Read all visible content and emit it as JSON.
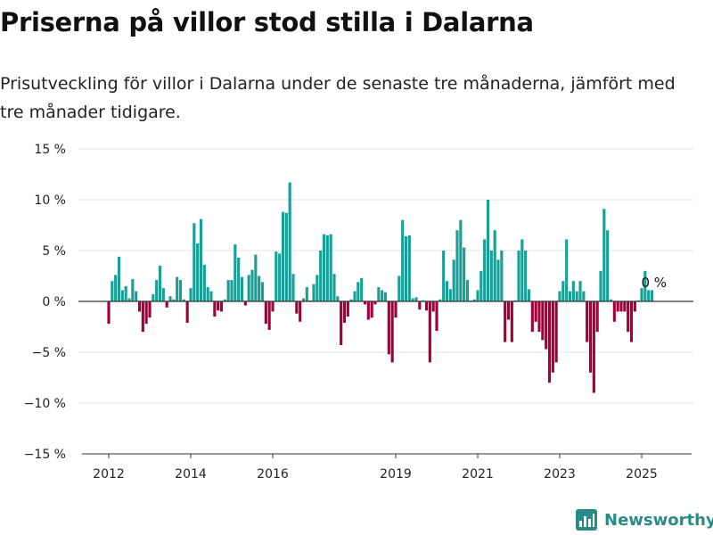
{
  "header": {
    "title": "Priserna på villor stod stilla i Dalarna",
    "subtitle": "Prisutveckling för villor i Dalarna under de senaste tre månaderna, jämfört med tre månader tidigare."
  },
  "brand": {
    "name": "Newsworthy",
    "icon": "bar-chart-logo-icon"
  },
  "colors": {
    "positive": "#1a9e96",
    "negative": "#a1003d",
    "grid": "#e3e3e3",
    "zero_line": "#333333",
    "axis_line": "#333333"
  },
  "chart_data": {
    "type": "bar",
    "x_start_year": 2012,
    "points_per_year": 12,
    "values": [
      -2.2,
      2.0,
      2.6,
      4.4,
      1.1,
      1.5,
      0.3,
      2.2,
      1.0,
      -1.0,
      -3.0,
      -2.2,
      -1.6,
      0.7,
      2.1,
      3.5,
      1.3,
      -0.6,
      0.5,
      0.2,
      2.4,
      2.1,
      0.2,
      -2.1,
      1.3,
      7.7,
      5.7,
      8.1,
      3.6,
      1.4,
      1.0,
      -1.5,
      -0.9,
      -1.0,
      0.2,
      2.1,
      2.1,
      5.6,
      4.3,
      2.4,
      -0.4,
      2.6,
      3.1,
      4.6,
      2.5,
      1.9,
      -2.2,
      -2.8,
      -1.0,
      4.9,
      4.7,
      8.8,
      8.7,
      11.7,
      2.7,
      -1.2,
      -2.0,
      0.3,
      1.4,
      0.1,
      1.7,
      2.6,
      5.0,
      6.6,
      6.5,
      6.6,
      2.7,
      0.5,
      -4.3,
      -2.1,
      -1.5,
      0.2,
      1.0,
      1.9,
      2.3,
      -0.3,
      -1.8,
      -1.6,
      -0.3,
      1.4,
      1.1,
      0.9,
      -5.2,
      -6.0,
      -1.6,
      2.5,
      8.0,
      6.4,
      6.5,
      0.3,
      0.4,
      -0.8,
      0.1,
      -0.9,
      -6.0,
      -1.0,
      -2.9,
      0.2,
      5.0,
      2.0,
      1.2,
      4.1,
      7.0,
      8.0,
      5.3,
      2.1,
      0.1,
      0.2,
      1.1,
      3.0,
      6.1,
      10.0,
      5.0,
      7.0,
      4.1,
      5.0,
      -4.0,
      -1.8,
      -4.0,
      0.1,
      5.0,
      6.1,
      5.0,
      1.2,
      -3.0,
      -2.0,
      -3.0,
      -3.8,
      -4.7,
      -8.0,
      -7.0,
      -6.0,
      1.0,
      2.0,
      6.1,
      1.0,
      2.0,
      1.0,
      2.0,
      1.0,
      -4.0,
      -7.0,
      -9.0,
      -3.0,
      3.0,
      9.1,
      7.0,
      0.2,
      -2.0,
      -1.0,
      -1.0,
      -1.0,
      -3.0,
      -4.0,
      -1.0,
      0.1,
      1.3,
      3.0,
      1.1,
      1.1
    ],
    "ylim": [
      -15,
      15
    ],
    "yticks": [
      15,
      10,
      5,
      0,
      -5,
      -10,
      -15
    ],
    "ytick_labels": [
      "15 %",
      "10 %",
      "5 %",
      "0 %",
      "−5 %",
      "−10 %",
      "−15 %"
    ],
    "xticks": [
      2012,
      2014,
      2016,
      2019,
      2021,
      2023,
      2025
    ],
    "xtick_labels": [
      "2012",
      "2014",
      "2016",
      "2019",
      "2021",
      "2023",
      "2025"
    ],
    "annotation": {
      "label": "0 %",
      "value": 0
    },
    "grid": true,
    "legend": "none"
  }
}
